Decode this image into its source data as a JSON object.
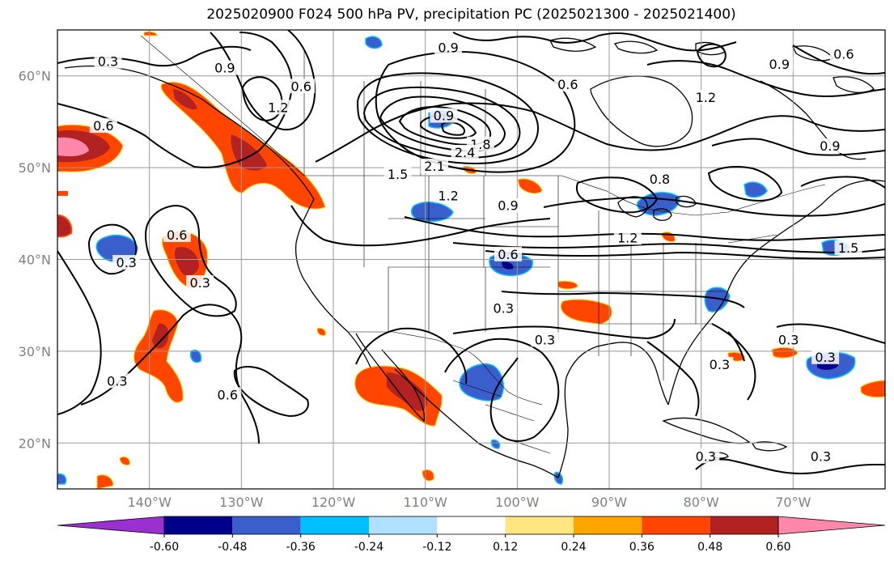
{
  "title": "2025020900 F024 500 hPa PV, precipitation PC (2025021300 - 2025021400)",
  "map": {
    "projection": "plate-carree",
    "lon_range": [
      -150,
      -60
    ],
    "lat_range": [
      15,
      65
    ],
    "lat_ticks": [
      {
        "value": 20,
        "label": "20°N"
      },
      {
        "value": 30,
        "label": "30°N"
      },
      {
        "value": 40,
        "label": "40°N"
      },
      {
        "value": 50,
        "label": "50°N"
      },
      {
        "value": 60,
        "label": "60°N"
      }
    ],
    "lon_ticks": [
      {
        "value": -140,
        "label": "140°W"
      },
      {
        "value": -130,
        "label": "130°W"
      },
      {
        "value": -120,
        "label": "120°W"
      },
      {
        "value": -110,
        "label": "110°W"
      },
      {
        "value": -100,
        "label": "100°W"
      },
      {
        "value": -90,
        "label": "90°W"
      },
      {
        "value": -80,
        "label": "80°W"
      },
      {
        "value": -70,
        "label": "70°W"
      }
    ],
    "gridlines": true
  },
  "colorbar": {
    "levels": [
      "-0.60",
      "-0.48",
      "-0.36",
      "-0.24",
      "-0.12",
      "0.12",
      "0.24",
      "0.36",
      "0.48",
      "0.60"
    ],
    "colors": [
      "#9b30d0",
      "#00008b",
      "#3a5fcd",
      "#00bfff",
      "#b0e0ff",
      "#ffffff",
      "#ffe680",
      "#ffa500",
      "#ff4500",
      "#b22222",
      "#ff88aa"
    ],
    "extend": "both"
  },
  "pv_contour_labels": [
    {
      "text": "0.3",
      "lon": -144.5,
      "lat": 61.5
    },
    {
      "text": "0.6",
      "lon": -145,
      "lat": 54.5
    },
    {
      "text": "0.9",
      "lon": -131.8,
      "lat": 60.8
    },
    {
      "text": "0.6",
      "lon": -123.5,
      "lat": 58.8
    },
    {
      "text": "1.2",
      "lon": -126,
      "lat": 56.5
    },
    {
      "text": "0.9",
      "lon": -107.5,
      "lat": 63
    },
    {
      "text": "0.6",
      "lon": -94.5,
      "lat": 59
    },
    {
      "text": "0.9",
      "lon": -108,
      "lat": 55.6
    },
    {
      "text": "1.8",
      "lon": -104,
      "lat": 52.5
    },
    {
      "text": "2.4",
      "lon": -105.7,
      "lat": 51.6
    },
    {
      "text": "2.1",
      "lon": -109,
      "lat": 50.1
    },
    {
      "text": "1.5",
      "lon": -113,
      "lat": 49.2
    },
    {
      "text": "1.2",
      "lon": -107.5,
      "lat": 46.9
    },
    {
      "text": "0.9",
      "lon": -101,
      "lat": 45.8
    },
    {
      "text": "0.8",
      "lon": -84.5,
      "lat": 48.7
    },
    {
      "text": "1.2",
      "lon": -79.5,
      "lat": 57.6
    },
    {
      "text": "0.9",
      "lon": -71.5,
      "lat": 61.2
    },
    {
      "text": "0.6",
      "lon": -64.5,
      "lat": 62.3
    },
    {
      "text": "0.9",
      "lon": -66,
      "lat": 52.3
    },
    {
      "text": "0.6",
      "lon": -137,
      "lat": 42.6
    },
    {
      "text": "0.3",
      "lon": -142.5,
      "lat": 39.6
    },
    {
      "text": "0.3",
      "lon": -134.5,
      "lat": 37.4
    },
    {
      "text": "0.6",
      "lon": -101,
      "lat": 40.5
    },
    {
      "text": "1.2",
      "lon": -88,
      "lat": 42.3
    },
    {
      "text": "1.5",
      "lon": -64,
      "lat": 41.2
    },
    {
      "text": "0.3",
      "lon": -101.5,
      "lat": 34.6
    },
    {
      "text": "0.3",
      "lon": -97,
      "lat": 31.2
    },
    {
      "text": "0.3",
      "lon": -143.5,
      "lat": 26.7
    },
    {
      "text": "0.6",
      "lon": -131.5,
      "lat": 25.2
    },
    {
      "text": "0.3",
      "lon": -78,
      "lat": 28.5
    },
    {
      "text": "0.3",
      "lon": -70.5,
      "lat": 31.2
    },
    {
      "text": "0.3",
      "lon": -66.5,
      "lat": 29.3
    },
    {
      "text": "0.3",
      "lon": -79.5,
      "lat": 18.5
    },
    {
      "text": "0.3",
      "lon": -67,
      "lat": 18.5
    }
  ]
}
